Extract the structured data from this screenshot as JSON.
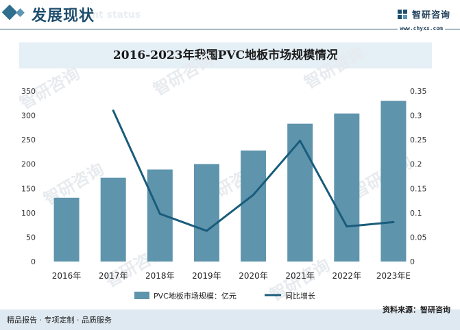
{
  "header": {
    "title": "发展现状",
    "subtitle_en": "ment status",
    "brand_name": "智研咨询",
    "brand_url": "www.chyxx.com"
  },
  "watermark": "智研咨询",
  "footer": {
    "left": "精品报告 · 专项定制 · 品质服务",
    "right": "资料来源：智研咨询"
  },
  "chart_data": {
    "type": "bar",
    "title": "2016-2023年我国PVC地板市场规模情况",
    "categories": [
      "2016年",
      "2017年",
      "2018年",
      "2019年",
      "2020年",
      "2021年",
      "2022年",
      "2023年E"
    ],
    "series": [
      {
        "name": "PVC地板市场规模：亿元",
        "type": "bar",
        "axis": "left",
        "color": "#5f94ad",
        "values": [
          131,
          172,
          189,
          200,
          228,
          283,
          304,
          330
        ]
      },
      {
        "name": "同比增长",
        "type": "line",
        "axis": "right",
        "color": "#195c7b",
        "values": [
          null,
          0.31,
          0.098,
          0.063,
          0.137,
          0.248,
          0.072,
          0.081
        ]
      }
    ],
    "y_left": {
      "min": 0,
      "max": 350,
      "ticks": [
        "0",
        "50",
        "100",
        "150",
        "200",
        "250",
        "300",
        "350"
      ]
    },
    "y_right": {
      "min": 0,
      "max": 0.35,
      "ticks": [
        "0",
        "0.05",
        "0.1",
        "0.15",
        "0.2",
        "0.25",
        "0.3",
        "0.35"
      ]
    },
    "legend_position": "bottom",
    "grid": false
  }
}
